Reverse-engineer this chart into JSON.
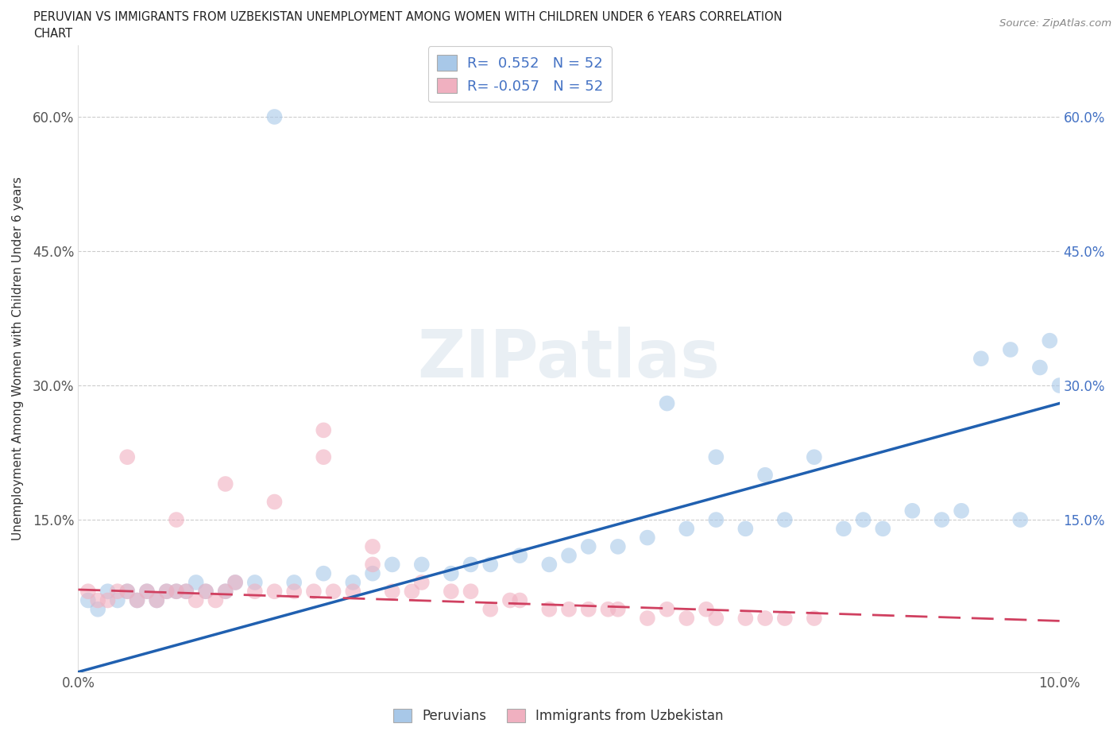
{
  "title_line1": "PERUVIAN VS IMMIGRANTS FROM UZBEKISTAN UNEMPLOYMENT AMONG WOMEN WITH CHILDREN UNDER 6 YEARS CORRELATION",
  "title_line2": "CHART",
  "source": "Source: ZipAtlas.com",
  "ylabel": "Unemployment Among Women with Children Under 6 years",
  "xlim": [
    0.0,
    0.1
  ],
  "ylim": [
    -0.02,
    0.68
  ],
  "ytick_labels": [
    "",
    "15.0%",
    "30.0%",
    "45.0%",
    "60.0%"
  ],
  "ytick_vals": [
    0.0,
    0.15,
    0.3,
    0.45,
    0.6
  ],
  "xtick_labels": [
    "0.0%",
    "",
    "",
    "",
    "",
    "",
    "",
    "",
    "",
    "",
    "10.0%"
  ],
  "xtick_vals": [
    0.0,
    0.01,
    0.02,
    0.03,
    0.04,
    0.05,
    0.06,
    0.07,
    0.08,
    0.09,
    0.1
  ],
  "blue_R": "0.552",
  "blue_N": "52",
  "pink_R": "-0.057",
  "pink_N": "52",
  "blue_color": "#a8c8e8",
  "pink_color": "#f0b0c0",
  "blue_line_color": "#2060b0",
  "pink_line_color": "#d04060",
  "legend_labels": [
    "Peruvians",
    "Immigrants from Uzbekistan"
  ],
  "blue_x": [
    0.001,
    0.002,
    0.003,
    0.004,
    0.005,
    0.006,
    0.007,
    0.008,
    0.009,
    0.01,
    0.011,
    0.012,
    0.013,
    0.015,
    0.016,
    0.018,
    0.02,
    0.022,
    0.025,
    0.028,
    0.03,
    0.032,
    0.035,
    0.038,
    0.04,
    0.042,
    0.045,
    0.048,
    0.05,
    0.052,
    0.055,
    0.058,
    0.06,
    0.062,
    0.065,
    0.065,
    0.068,
    0.07,
    0.072,
    0.075,
    0.078,
    0.08,
    0.082,
    0.085,
    0.088,
    0.09,
    0.092,
    0.095,
    0.096,
    0.098,
    0.099,
    0.1
  ],
  "blue_y": [
    0.06,
    0.05,
    0.07,
    0.06,
    0.07,
    0.06,
    0.07,
    0.06,
    0.07,
    0.07,
    0.07,
    0.08,
    0.07,
    0.07,
    0.08,
    0.08,
    0.6,
    0.08,
    0.09,
    0.08,
    0.09,
    0.1,
    0.1,
    0.09,
    0.1,
    0.1,
    0.11,
    0.1,
    0.11,
    0.12,
    0.12,
    0.13,
    0.28,
    0.14,
    0.15,
    0.22,
    0.14,
    0.2,
    0.15,
    0.22,
    0.14,
    0.15,
    0.14,
    0.16,
    0.15,
    0.16,
    0.33,
    0.34,
    0.15,
    0.32,
    0.35,
    0.3
  ],
  "pink_x": [
    0.001,
    0.002,
    0.003,
    0.004,
    0.005,
    0.006,
    0.007,
    0.008,
    0.009,
    0.01,
    0.011,
    0.012,
    0.013,
    0.014,
    0.015,
    0.016,
    0.018,
    0.02,
    0.022,
    0.024,
    0.025,
    0.026,
    0.028,
    0.03,
    0.032,
    0.034,
    0.035,
    0.038,
    0.04,
    0.042,
    0.044,
    0.045,
    0.048,
    0.05,
    0.052,
    0.054,
    0.055,
    0.058,
    0.06,
    0.062,
    0.064,
    0.065,
    0.068,
    0.07,
    0.072,
    0.075,
    0.02,
    0.025,
    0.03,
    0.01,
    0.005,
    0.015
  ],
  "pink_y": [
    0.07,
    0.06,
    0.06,
    0.07,
    0.07,
    0.06,
    0.07,
    0.06,
    0.07,
    0.07,
    0.07,
    0.06,
    0.07,
    0.06,
    0.07,
    0.08,
    0.07,
    0.07,
    0.07,
    0.07,
    0.22,
    0.07,
    0.07,
    0.1,
    0.07,
    0.07,
    0.08,
    0.07,
    0.07,
    0.05,
    0.06,
    0.06,
    0.05,
    0.05,
    0.05,
    0.05,
    0.05,
    0.04,
    0.05,
    0.04,
    0.05,
    0.04,
    0.04,
    0.04,
    0.04,
    0.04,
    0.17,
    0.25,
    0.12,
    0.15,
    0.22,
    0.19
  ]
}
